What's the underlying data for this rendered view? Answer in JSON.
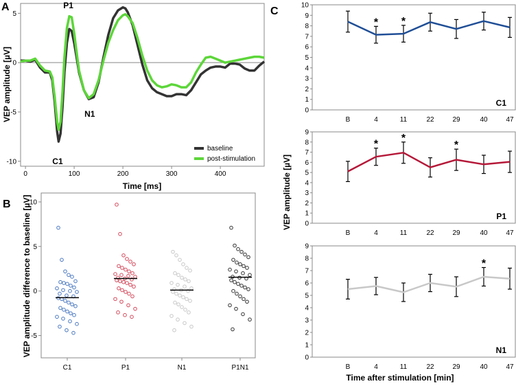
{
  "panel_letters": {
    "a": "A",
    "b": "B",
    "c": "C"
  },
  "chart_data": [
    {
      "panel": "A",
      "type": "line",
      "xlabel": "Time [ms]",
      "ylabel": "VEP amplitude  [µV]",
      "xlim": [
        -10,
        490
      ],
      "ylim": [
        -10.5,
        6
      ],
      "xticks": [
        0,
        100,
        200,
        300,
        400
      ],
      "yticks": [
        -10,
        -5,
        0,
        5
      ],
      "peak_labels": [
        {
          "text": "P1",
          "x": 88,
          "y": 5.5
        },
        {
          "text": "N1",
          "x": 132,
          "y": -5.5
        },
        {
          "text": "C1",
          "x": 66,
          "y": -10.3
        }
      ],
      "series": [
        {
          "name": "baseline",
          "color": "#333333",
          "x": [
            -10,
            0,
            10,
            20,
            30,
            40,
            50,
            55,
            60,
            65,
            68,
            72,
            76,
            80,
            85,
            90,
            95,
            100,
            105,
            110,
            120,
            130,
            140,
            150,
            160,
            170,
            180,
            190,
            200,
            205,
            210,
            220,
            230,
            240,
            250,
            260,
            270,
            280,
            290,
            300,
            310,
            320,
            330,
            340,
            350,
            360,
            370,
            380,
            390,
            400,
            410,
            420,
            430,
            440,
            450,
            460,
            470,
            480,
            490
          ],
          "y": [
            0.2,
            0.2,
            0.1,
            0.3,
            -0.5,
            -1.0,
            -1.0,
            -1.8,
            -4.0,
            -7.0,
            -8.0,
            -7.2,
            -4.5,
            -1.0,
            2.0,
            3.4,
            3.2,
            2.0,
            0.5,
            -1.0,
            -2.8,
            -3.7,
            -3.5,
            -2.0,
            0.5,
            2.8,
            4.5,
            5.3,
            5.6,
            5.5,
            5.1,
            3.8,
            1.8,
            -0.2,
            -1.8,
            -2.6,
            -3.0,
            -3.2,
            -3.4,
            -3.4,
            -3.2,
            -3.2,
            -3.3,
            -2.8,
            -2.0,
            -1.2,
            -0.8,
            -0.5,
            -0.4,
            -0.4,
            -0.5,
            -0.1,
            -0.1,
            -0.2,
            -0.6,
            -0.8,
            -0.8,
            -0.3,
            0.1
          ]
        },
        {
          "name": "post-stimulation",
          "color": "#5dd63a",
          "x": [
            -10,
            0,
            10,
            20,
            30,
            40,
            50,
            55,
            60,
            65,
            68,
            72,
            76,
            80,
            85,
            90,
            95,
            100,
            105,
            110,
            120,
            130,
            140,
            150,
            160,
            170,
            180,
            190,
            200,
            205,
            210,
            220,
            230,
            240,
            250,
            260,
            270,
            280,
            290,
            300,
            310,
            320,
            330,
            340,
            350,
            360,
            370,
            380,
            390,
            400,
            410,
            420,
            430,
            440,
            450,
            460,
            470,
            480,
            490
          ],
          "y": [
            0.1,
            0.2,
            0.2,
            0.4,
            -0.3,
            -0.8,
            -0.9,
            -1.5,
            -3.5,
            -6.0,
            -6.8,
            -6.0,
            -3.0,
            0.5,
            3.5,
            4.7,
            4.6,
            3.0,
            1.0,
            -0.8,
            -2.8,
            -3.6,
            -3.2,
            -1.8,
            0.2,
            2.0,
            3.3,
            4.3,
            4.8,
            4.9,
            4.7,
            4.0,
            2.5,
            0.7,
            -0.8,
            -1.8,
            -2.3,
            -2.5,
            -2.4,
            -2.2,
            -2.3,
            -2.5,
            -2.5,
            -2.0,
            -1.0,
            -0.2,
            0.5,
            0.6,
            0.4,
            0.2,
            0.0,
            0.1,
            0.2,
            0.3,
            0.4,
            0.5,
            0.6,
            0.6,
            0.5
          ]
        }
      ]
    },
    {
      "panel": "B",
      "type": "scatter",
      "ylabel": "VEP amplitude difference to baseline  [µV]",
      "ylim": [
        -7.5,
        11
      ],
      "yticks": [
        -5,
        0,
        5,
        10
      ],
      "categories": [
        "C1",
        "P1",
        "N1",
        "P1N1"
      ],
      "colors": [
        "#4a78c0",
        "#d34a5c",
        "#c8c8c8",
        "#333333"
      ],
      "means": [
        -0.75,
        1.4,
        0.1,
        1.55
      ],
      "points": [
        [
          7.1,
          3.5,
          2.2,
          1.8,
          1.6,
          1.1,
          1.0,
          0.9,
          0.8,
          0.6,
          0.4,
          0.3,
          0.1,
          0.0,
          -0.1,
          -0.3,
          -0.5,
          -0.6,
          -0.8,
          -0.9,
          -1.1,
          -1.3,
          -1.5,
          -1.7,
          -1.9,
          -2.1,
          -2.3,
          -2.5,
          -2.7,
          -2.9,
          -3.1,
          -3.4,
          -3.7,
          -4.0,
          -4.4,
          -4.7
        ],
        [
          9.7,
          6.4,
          4.0,
          3.6,
          3.3,
          3.0,
          2.8,
          2.6,
          2.4,
          2.2,
          2.0,
          1.9,
          1.8,
          1.7,
          1.6,
          1.5,
          1.4,
          1.3,
          1.2,
          1.1,
          1.0,
          0.9,
          0.7,
          0.5,
          0.3,
          0.1,
          -0.1,
          -0.3,
          -0.6,
          -0.9,
          -1.2,
          -1.6,
          -2.0,
          -2.4,
          -2.7,
          -2.9
        ],
        [
          4.4,
          4.0,
          3.5,
          3.0,
          2.6,
          2.3,
          2.0,
          1.8,
          1.5,
          1.3,
          1.1,
          0.9,
          0.7,
          0.5,
          0.3,
          0.2,
          0.1,
          0.0,
          -0.1,
          -0.3,
          -0.5,
          -0.7,
          -0.9,
          -1.1,
          -1.3,
          -1.5,
          -1.8,
          -2.1,
          -2.4,
          -2.8,
          -3.2,
          -3.6,
          -4.0,
          -4.4
        ],
        [
          7.1,
          5.1,
          4.7,
          4.4,
          4.1,
          3.8,
          3.5,
          3.2,
          3.0,
          2.8,
          2.6,
          2.4,
          2.2,
          2.0,
          1.8,
          1.6,
          1.5,
          1.4,
          1.2,
          1.0,
          0.8,
          0.6,
          0.4,
          0.2,
          0.0,
          -0.3,
          -0.6,
          -0.9,
          -1.2,
          -1.6,
          -2.0,
          -2.6,
          -3.2,
          -4.3
        ]
      ]
    },
    {
      "panel": "C1",
      "type": "line",
      "label": "C1",
      "color": "#1f4e96",
      "categories": [
        "B",
        "4",
        "11",
        "22",
        "29",
        "40",
        "47"
      ],
      "values": [
        8.4,
        7.15,
        7.25,
        8.35,
        7.7,
        8.45,
        7.85
      ],
      "err": [
        1.0,
        0.8,
        0.8,
        0.85,
        0.9,
        0.85,
        0.95
      ],
      "stars": [
        false,
        true,
        true,
        false,
        false,
        false,
        false
      ],
      "ylim": [
        0,
        10
      ],
      "yticks": [
        0,
        1,
        2,
        3,
        4,
        5,
        6,
        7,
        8,
        9,
        10
      ]
    },
    {
      "panel": "P1",
      "type": "line",
      "label": "P1",
      "color": "#b51838",
      "categories": [
        "B",
        "4",
        "11",
        "22",
        "29",
        "40",
        "47"
      ],
      "values": [
        5.1,
        6.55,
        6.95,
        5.5,
        6.25,
        5.8,
        6.05
      ],
      "err": [
        1.0,
        0.85,
        1.05,
        0.95,
        1.05,
        0.9,
        1.05
      ],
      "stars": [
        false,
        true,
        true,
        false,
        true,
        false,
        false
      ],
      "ylim": [
        0,
        9
      ],
      "yticks": [
        0,
        1,
        2,
        3,
        4,
        5,
        6,
        7,
        8,
        9
      ]
    },
    {
      "panel": "N1",
      "type": "line",
      "label": "N1",
      "color": "#c8c8c8",
      "categories": [
        "B",
        "4",
        "11",
        "22",
        "29",
        "40",
        "47"
      ],
      "values": [
        5.5,
        5.75,
        5.25,
        6.0,
        5.7,
        6.5,
        6.35
      ],
      "err": [
        0.8,
        0.7,
        0.75,
        0.7,
        0.8,
        0.75,
        0.85
      ],
      "stars": [
        false,
        false,
        false,
        false,
        false,
        true,
        false
      ],
      "ylim": [
        0,
        9
      ],
      "yticks": [
        0,
        1,
        2,
        3,
        4,
        5,
        6,
        7,
        8,
        9
      ]
    }
  ],
  "panel_c_axes": {
    "ylabel": "VEP amplitude  [µV]",
    "xlabel": "Time after stimulation [min]",
    "star_symbol": "*"
  }
}
